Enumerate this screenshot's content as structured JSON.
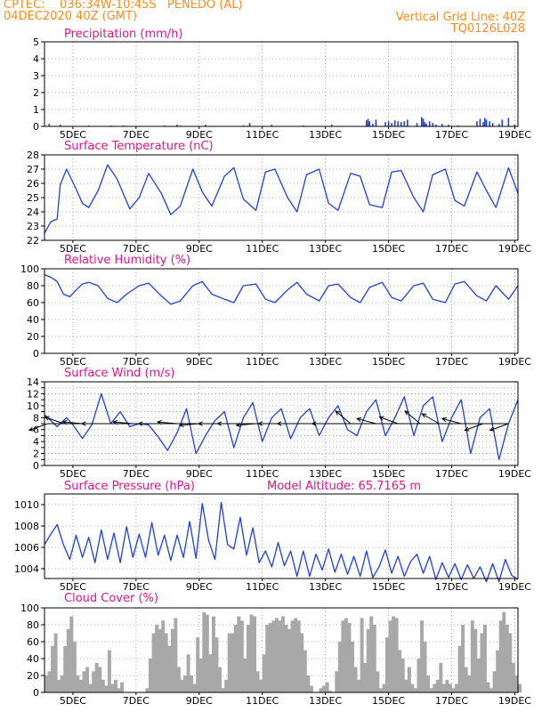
{
  "header": {
    "line1_left": "CPTEC:    036:34W-10:45S   PENEDO (AL)",
    "line2_left": "04DEC2020 40Z (GMT)",
    "line1_right": "Vertical Grid Line: 40Z",
    "line2_right": "TQ0126L028"
  },
  "colors": {
    "header_text": "#ff8c1a",
    "panel_title": "#e0168c",
    "series_line": "#1f3fe0",
    "wind_arrow": "#000000",
    "cloud_fill": "#a8a8a8",
    "grid": "#9a9a9a"
  },
  "x_ticks": [
    "5DEC",
    "7DEC",
    "9DEC",
    "11DEC",
    "13DEC",
    "15DEC",
    "17DEC",
    "19DEC"
  ],
  "chart_data": [
    {
      "id": "precip",
      "type": "bar",
      "title": "Precipitation (mm/h)",
      "x_unit": "days since 4DEC2020 00Z",
      "x_range": [
        4.1,
        19.1
      ],
      "ylim": [
        0,
        5
      ],
      "y_ticks": [
        "0",
        "1",
        "2",
        "3",
        "4",
        "5"
      ],
      "grid": true,
      "series": [
        {
          "x": [
            4.25,
            4.6,
            5.5,
            6.2,
            6.6,
            7.9,
            8.3,
            8.4,
            9.2,
            10.4,
            10.6,
            11.3,
            12.3,
            13.2,
            14.3,
            14.35,
            14.4,
            14.5,
            14.6,
            14.9,
            15.0,
            15.1,
            15.2,
            15.3,
            15.4,
            15.5,
            15.6,
            15.9,
            16.05,
            16.1,
            16.15,
            16.2,
            16.3,
            16.4,
            16.5,
            16.7,
            16.9,
            17.2,
            17.8,
            17.9,
            18.0,
            18.05,
            18.1,
            18.2,
            18.3,
            18.5,
            18.6,
            18.8,
            19.0
          ],
          "values": [
            0.15,
            0.1,
            0.05,
            0.05,
            0.05,
            0.05,
            0.1,
            0.05,
            0.1,
            0.05,
            0.2,
            0.1,
            0.05,
            0.1,
            0.35,
            0.45,
            0.3,
            0.15,
            0.4,
            0.25,
            0.3,
            0.2,
            0.35,
            0.3,
            0.25,
            0.3,
            0.4,
            0.2,
            0.55,
            0.45,
            0.25,
            0.15,
            0.3,
            0.2,
            0.1,
            0.15,
            0.1,
            0.05,
            0.3,
            0.45,
            0.25,
            0.5,
            0.4,
            0.3,
            0.2,
            0.15,
            0.4,
            0.5,
            0.1
          ]
        }
      ]
    },
    {
      "id": "temp",
      "type": "line",
      "title": "Surface Temperature (nC)",
      "x_range": [
        4.1,
        19.1
      ],
      "ylim": [
        22,
        28
      ],
      "y_ticks": [
        "22",
        "23",
        "24",
        "25",
        "26",
        "27",
        "28"
      ],
      "grid": true,
      "series": [
        {
          "x": [
            4.1,
            4.3,
            4.5,
            4.6,
            4.8,
            5.1,
            5.3,
            5.5,
            5.8,
            6.1,
            6.4,
            6.8,
            7.1,
            7.4,
            7.8,
            8.1,
            8.4,
            8.8,
            9.1,
            9.4,
            9.8,
            10.1,
            10.4,
            10.8,
            11.1,
            11.4,
            11.8,
            12.1,
            12.4,
            12.8,
            13.1,
            13.4,
            13.8,
            14.1,
            14.4,
            14.8,
            15.1,
            15.4,
            15.8,
            16.1,
            16.4,
            16.8,
            17.1,
            17.4,
            17.8,
            18.1,
            18.4,
            18.8,
            19.1
          ],
          "values": [
            22.5,
            23.3,
            23.5,
            25.9,
            27.0,
            25.6,
            24.6,
            24.3,
            25.5,
            27.3,
            26.3,
            24.2,
            25.0,
            26.7,
            25.3,
            23.8,
            24.4,
            27.0,
            25.4,
            24.4,
            26.5,
            27.1,
            24.9,
            24.1,
            26.8,
            27.0,
            25.0,
            24.0,
            26.6,
            27.0,
            24.6,
            24.1,
            26.7,
            26.5,
            24.5,
            24.3,
            26.8,
            26.9,
            25.0,
            24.0,
            26.6,
            27.0,
            24.8,
            24.4,
            26.8,
            25.5,
            24.3,
            27.1,
            25.3
          ]
        }
      ]
    },
    {
      "id": "rh",
      "type": "line",
      "title": "Relative Humidity (%)",
      "x_range": [
        4.1,
        19.1
      ],
      "ylim": [
        0,
        100
      ],
      "y_ticks": [
        "0",
        "20",
        "40",
        "60",
        "80",
        "100"
      ],
      "grid": true,
      "series": [
        {
          "x": [
            4.1,
            4.3,
            4.5,
            4.7,
            4.9,
            5.1,
            5.3,
            5.5,
            5.8,
            6.1,
            6.4,
            6.7,
            7.1,
            7.4,
            7.8,
            8.1,
            8.4,
            8.8,
            9.1,
            9.4,
            9.8,
            10.1,
            10.4,
            10.8,
            11.1,
            11.4,
            11.8,
            12.1,
            12.4,
            12.8,
            13.1,
            13.4,
            13.8,
            14.1,
            14.4,
            14.8,
            15.1,
            15.4,
            15.8,
            16.1,
            16.4,
            16.8,
            17.1,
            17.4,
            17.8,
            18.1,
            18.4,
            18.8,
            19.1
          ],
          "values": [
            93,
            90,
            85,
            70,
            67,
            75,
            82,
            84,
            80,
            65,
            60,
            70,
            80,
            83,
            68,
            58,
            62,
            80,
            85,
            70,
            64,
            60,
            80,
            82,
            64,
            60,
            75,
            84,
            70,
            62,
            80,
            82,
            66,
            60,
            78,
            84,
            66,
            62,
            80,
            83,
            64,
            60,
            82,
            85,
            68,
            62,
            80,
            64,
            80
          ]
        }
      ]
    },
    {
      "id": "wind",
      "type": "line",
      "title": "Surface Wind (m/s)",
      "x_range": [
        4.1,
        19.1
      ],
      "ylim": [
        0,
        14
      ],
      "y_ticks": [
        "0",
        "1",
        "2",
        "3",
        "4",
        "5",
        "6",
        "7",
        "8",
        "9",
        "10",
        "11",
        "12",
        "13",
        "14"
      ],
      "y_tick_labels_every": 2,
      "grid": true,
      "series": [
        {
          "x": [
            4.1,
            4.3,
            4.5,
            4.8,
            5.0,
            5.3,
            5.6,
            5.9,
            6.2,
            6.5,
            6.8,
            7.1,
            7.4,
            7.7,
            8.0,
            8.3,
            8.6,
            8.9,
            9.2,
            9.5,
            9.8,
            10.1,
            10.4,
            10.7,
            11.0,
            11.3,
            11.6,
            11.9,
            12.2,
            12.5,
            12.8,
            13.1,
            13.4,
            13.7,
            14.0,
            14.3,
            14.6,
            14.9,
            15.2,
            15.5,
            15.8,
            16.1,
            16.4,
            16.7,
            17.0,
            17.3,
            17.6,
            17.9,
            18.2,
            18.5,
            18.8,
            19.1
          ],
          "values": [
            8.5,
            7.5,
            6.5,
            8.0,
            6.8,
            4.5,
            6.8,
            12.0,
            7.0,
            9.0,
            6.5,
            7.0,
            6.8,
            4.8,
            2.5,
            5.5,
            9.5,
            2.0,
            5.0,
            7.5,
            9.0,
            3.0,
            8.0,
            10.5,
            4.0,
            8.0,
            9.5,
            4.5,
            8.0,
            9.5,
            5.0,
            8.0,
            10.0,
            6.0,
            5.0,
            9.0,
            11.0,
            5.0,
            8.0,
            11.5,
            5.0,
            10.0,
            11.5,
            4.0,
            8.0,
            11.0,
            2.0,
            8.0,
            9.5,
            1.0,
            7.0,
            11.0
          ]
        }
      ],
      "arrows": [
        {
          "x": 4.2,
          "dir_deg": 200
        },
        {
          "x": 4.7,
          "dir_deg": 160
        },
        {
          "x": 5.3,
          "dir_deg": 175
        },
        {
          "x": 5.9,
          "dir_deg": 180
        },
        {
          "x": 6.9,
          "dir_deg": 175
        },
        {
          "x": 7.7,
          "dir_deg": 180
        },
        {
          "x": 8.3,
          "dir_deg": 175
        },
        {
          "x": 9.0,
          "dir_deg": 185
        },
        {
          "x": 9.6,
          "dir_deg": 180
        },
        {
          "x": 10.2,
          "dir_deg": 180
        },
        {
          "x": 10.8,
          "dir_deg": 185
        },
        {
          "x": 11.5,
          "dir_deg": 180
        },
        {
          "x": 12.1,
          "dir_deg": 180
        },
        {
          "x": 13.2,
          "dir_deg": 180
        },
        {
          "x": 13.8,
          "dir_deg": 140
        },
        {
          "x": 14.6,
          "dir_deg": 165
        },
        {
          "x": 15.3,
          "dir_deg": 160
        },
        {
          "x": 16.0,
          "dir_deg": 140
        },
        {
          "x": 16.6,
          "dir_deg": 150
        },
        {
          "x": 17.3,
          "dir_deg": 165
        },
        {
          "x": 18.0,
          "dir_deg": 200
        },
        {
          "x": 18.8,
          "dir_deg": 200
        }
      ]
    },
    {
      "id": "pressure",
      "type": "line",
      "title": "Surface Pressure (hPa)",
      "annotation": "Model Altitude: 65.7165 m",
      "x_range": [
        4.1,
        19.1
      ],
      "ylim": [
        1003,
        1011
      ],
      "y_ticks": [
        "1004",
        "1006",
        "1008",
        "1010"
      ],
      "grid": true,
      "series": [
        {
          "x": [
            4.1,
            4.3,
            4.5,
            4.7,
            4.9,
            5.1,
            5.3,
            5.5,
            5.7,
            5.9,
            6.1,
            6.3,
            6.5,
            6.7,
            6.9,
            7.1,
            7.3,
            7.5,
            7.7,
            7.9,
            8.1,
            8.3,
            8.5,
            8.7,
            8.9,
            9.1,
            9.3,
            9.5,
            9.7,
            9.9,
            10.1,
            10.3,
            10.5,
            10.7,
            10.9,
            11.1,
            11.3,
            11.5,
            11.7,
            11.9,
            12.1,
            12.3,
            12.5,
            12.7,
            12.9,
            13.1,
            13.3,
            13.5,
            13.7,
            13.9,
            14.1,
            14.3,
            14.5,
            14.7,
            14.9,
            15.1,
            15.3,
            15.5,
            15.7,
            15.9,
            16.1,
            16.3,
            16.5,
            16.7,
            16.9,
            17.1,
            17.3,
            17.5,
            17.7,
            17.9,
            18.1,
            18.3,
            18.5,
            18.7,
            18.9,
            19.1
          ],
          "values": [
            1006.2,
            1007.2,
            1008.1,
            1006.2,
            1004.8,
            1007.1,
            1005.0,
            1006.9,
            1004.5,
            1007.6,
            1004.8,
            1007.3,
            1004.5,
            1007.9,
            1005.0,
            1007.2,
            1005.0,
            1008.3,
            1005.2,
            1007.1,
            1004.7,
            1007.1,
            1005.0,
            1008.4,
            1004.9,
            1010.1,
            1006.6,
            1004.8,
            1010.2,
            1006.2,
            1005.8,
            1008.8,
            1005.2,
            1007.8,
            1004.5,
            1005.6,
            1004.1,
            1006.4,
            1004.2,
            1005.6,
            1003.2,
            1005.6,
            1003.2,
            1005.3,
            1003.8,
            1005.8,
            1003.6,
            1005.3,
            1003.4,
            1005.1,
            1003.2,
            1005.6,
            1003.1,
            1004.1,
            1005.7,
            1003.5,
            1005.1,
            1003.2,
            1004.6,
            1005.3,
            1003.5,
            1005.1,
            1002.9,
            1004.5,
            1003.1,
            1004.4,
            1002.9,
            1004.3,
            1003.0,
            1004.1,
            1002.7,
            1004.4,
            1002.7,
            1004.8,
            1003.3,
            1002.9
          ]
        }
      ]
    },
    {
      "id": "cloud",
      "type": "area",
      "title": "Cloud Cover (%)",
      "x_range": [
        4.1,
        19.1
      ],
      "ylim": [
        0,
        100
      ],
      "y_ticks": [
        "0",
        "20",
        "40",
        "60",
        "80",
        "100"
      ],
      "grid": true,
      "series": [
        {
          "x": [
            4.1,
            4.2,
            4.3,
            4.4,
            4.5,
            4.6,
            4.7,
            4.8,
            4.9,
            5.0,
            5.1,
            5.2,
            5.3,
            5.4,
            5.5,
            5.6,
            5.7,
            5.8,
            5.9,
            6.0,
            6.1,
            6.2,
            6.3,
            6.4,
            6.5,
            6.6,
            6.7,
            6.8,
            6.9,
            7.0,
            7.1,
            7.2,
            7.3,
            7.4,
            7.5,
            7.6,
            7.7,
            7.8,
            7.9,
            8.0,
            8.1,
            8.2,
            8.3,
            8.4,
            8.5,
            8.6,
            8.7,
            8.8,
            8.9,
            9.0,
            9.1,
            9.2,
            9.3,
            9.4,
            9.5,
            9.6,
            9.7,
            9.8,
            9.9,
            10.0,
            10.1,
            10.2,
            10.3,
            10.4,
            10.5,
            10.6,
            10.7,
            10.8,
            10.9,
            11.0,
            11.1,
            11.2,
            11.3,
            11.4,
            11.5,
            11.6,
            11.7,
            11.8,
            11.9,
            12.0,
            12.1,
            12.2,
            12.3,
            12.4,
            12.5,
            12.6,
            12.7,
            12.8,
            12.9,
            13.0,
            13.1,
            13.2,
            13.3,
            13.4,
            13.5,
            13.6,
            13.7,
            13.8,
            13.9,
            14.0,
            14.1,
            14.2,
            14.3,
            14.4,
            14.5,
            14.6,
            14.7,
            14.8,
            14.9,
            15.0,
            15.1,
            15.2,
            15.3,
            15.4,
            15.5,
            15.6,
            15.7,
            15.8,
            15.9,
            16.0,
            16.1,
            16.2,
            16.3,
            16.4,
            16.5,
            16.6,
            16.7,
            16.8,
            16.9,
            17.0,
            17.1,
            17.2,
            17.3,
            17.4,
            17.5,
            17.6,
            17.7,
            17.8,
            17.9,
            18.0,
            18.1,
            18.2,
            18.3,
            18.4,
            18.5,
            18.6,
            18.7,
            18.8,
            18.9,
            19.0,
            19.1
          ],
          "values": [
            20,
            25,
            55,
            70,
            15,
            20,
            55,
            75,
            90,
            60,
            20,
            15,
            25,
            30,
            10,
            25,
            35,
            30,
            15,
            8,
            50,
            10,
            15,
            5,
            12,
            0,
            0,
            0,
            0,
            0,
            0,
            0,
            5,
            40,
            70,
            80,
            75,
            85,
            70,
            55,
            75,
            88,
            30,
            15,
            20,
            45,
            20,
            10,
            65,
            40,
            95,
            92,
            45,
            90,
            65,
            30,
            5,
            15,
            70,
            70,
            80,
            90,
            85,
            40,
            80,
            92,
            90,
            25,
            15,
            45,
            80,
            82,
            85,
            88,
            85,
            90,
            80,
            75,
            85,
            88,
            85,
            70,
            50,
            20,
            8,
            0,
            0,
            5,
            8,
            12,
            2,
            0,
            25,
            60,
            85,
            88,
            82,
            60,
            30,
            15,
            88,
            35,
            75,
            90,
            80,
            25,
            5,
            10,
            65,
            85,
            90,
            88,
            50,
            40,
            15,
            30,
            10,
            5,
            40,
            85,
            60,
            20,
            5,
            10,
            15,
            35,
            10,
            15,
            10,
            5,
            10,
            55,
            80,
            30,
            20,
            85,
            75,
            40,
            70,
            80,
            12,
            5,
            25,
            50,
            85,
            95,
            80,
            70,
            35,
            20,
            10
          ]
        }
      ]
    }
  ]
}
